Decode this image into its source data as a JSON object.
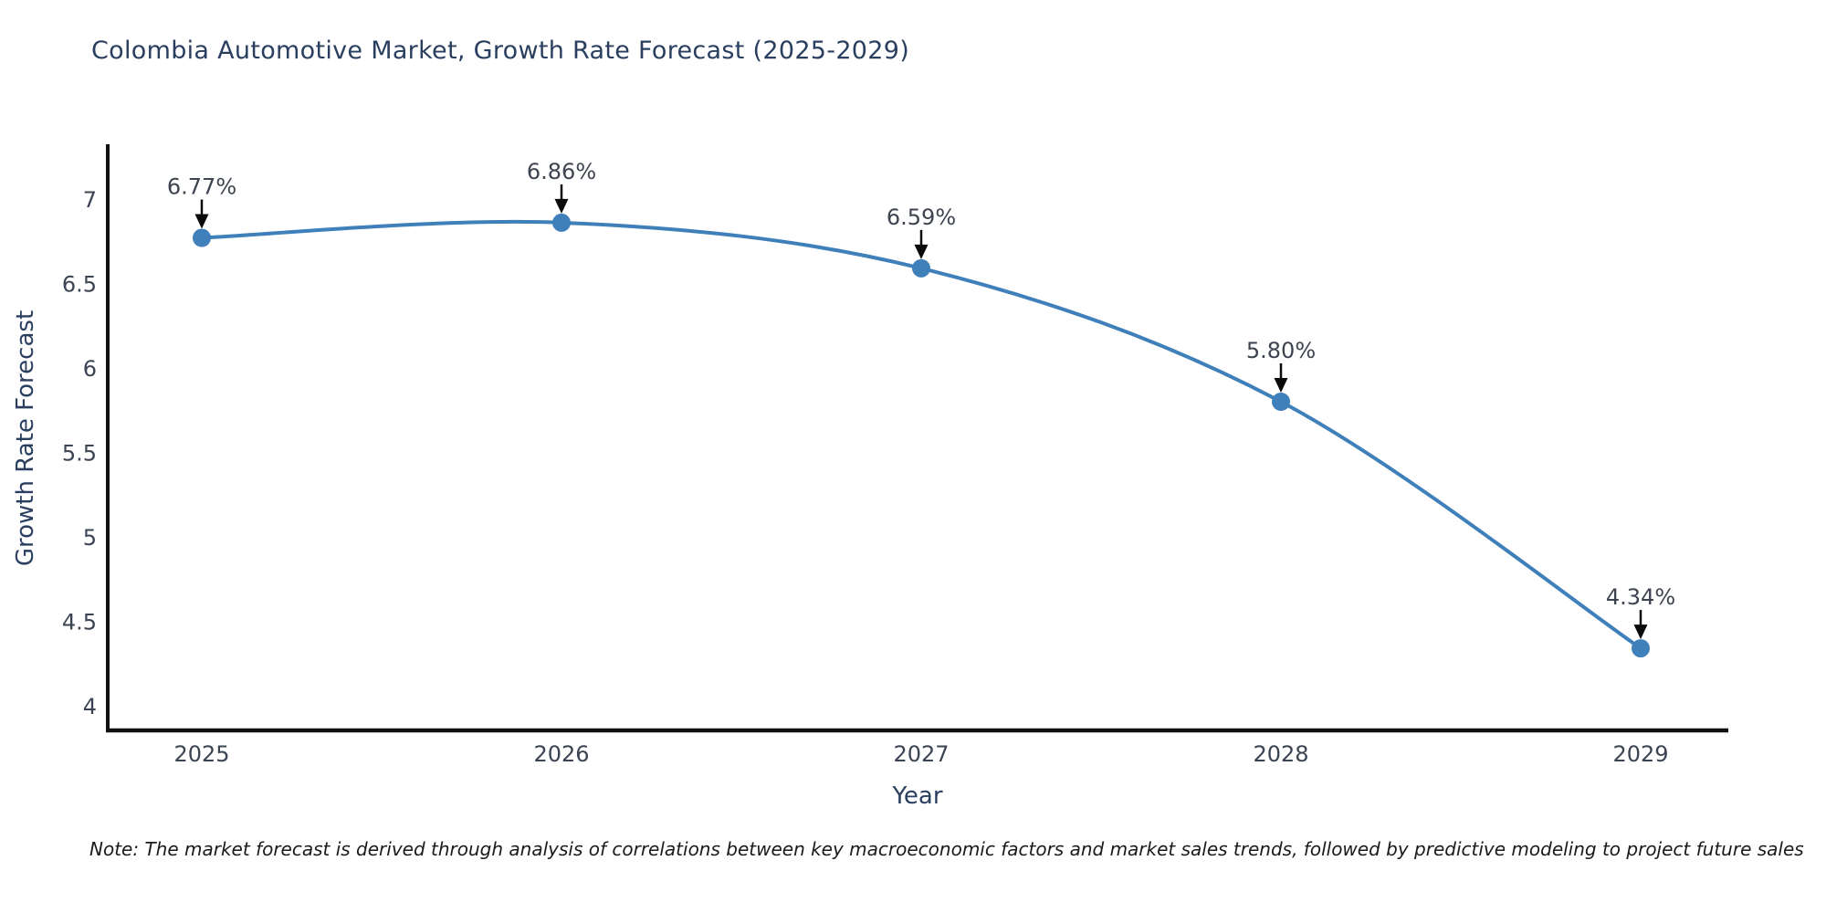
{
  "chart_data": {
    "type": "line",
    "title": "Colombia Automotive Market, Growth Rate Forecast (2025-2029)",
    "xlabel": "Year",
    "ylabel": "Growth Rate Forecast",
    "categories": [
      "2025",
      "2026",
      "2027",
      "2028",
      "2029"
    ],
    "series": [
      {
        "name": "Growth Rate Forecast",
        "values": [
          6.77,
          6.86,
          6.59,
          5.8,
          4.34
        ]
      }
    ],
    "point_labels": [
      "6.77%",
      "6.86%",
      "6.59%",
      "5.80%",
      "4.34%"
    ],
    "yticks": [
      4,
      4.5,
      5,
      5.5,
      6,
      6.5,
      7
    ],
    "ytick_labels": [
      "4",
      "4.5",
      "5",
      "5.5",
      "6",
      "6.5",
      "7"
    ],
    "ylim": [
      3.85,
      7.32
    ],
    "line_shape": "spline",
    "grid": false,
    "legend": "none",
    "colors": {
      "line": "#3f7fba",
      "marker": "#3f7fba",
      "axis": "#111111",
      "title_text": "#2a3f5f",
      "tick_text": "#3b4452",
      "annotation_text": "#3d4450",
      "arrow": "#0a0a0a",
      "background": "#ffffff"
    }
  },
  "note": {
    "text": "Note: The market forecast is derived through analysis of correlations between key macroeconomic factors and market sales trends, followed by predictive modeling to project future sales"
  }
}
